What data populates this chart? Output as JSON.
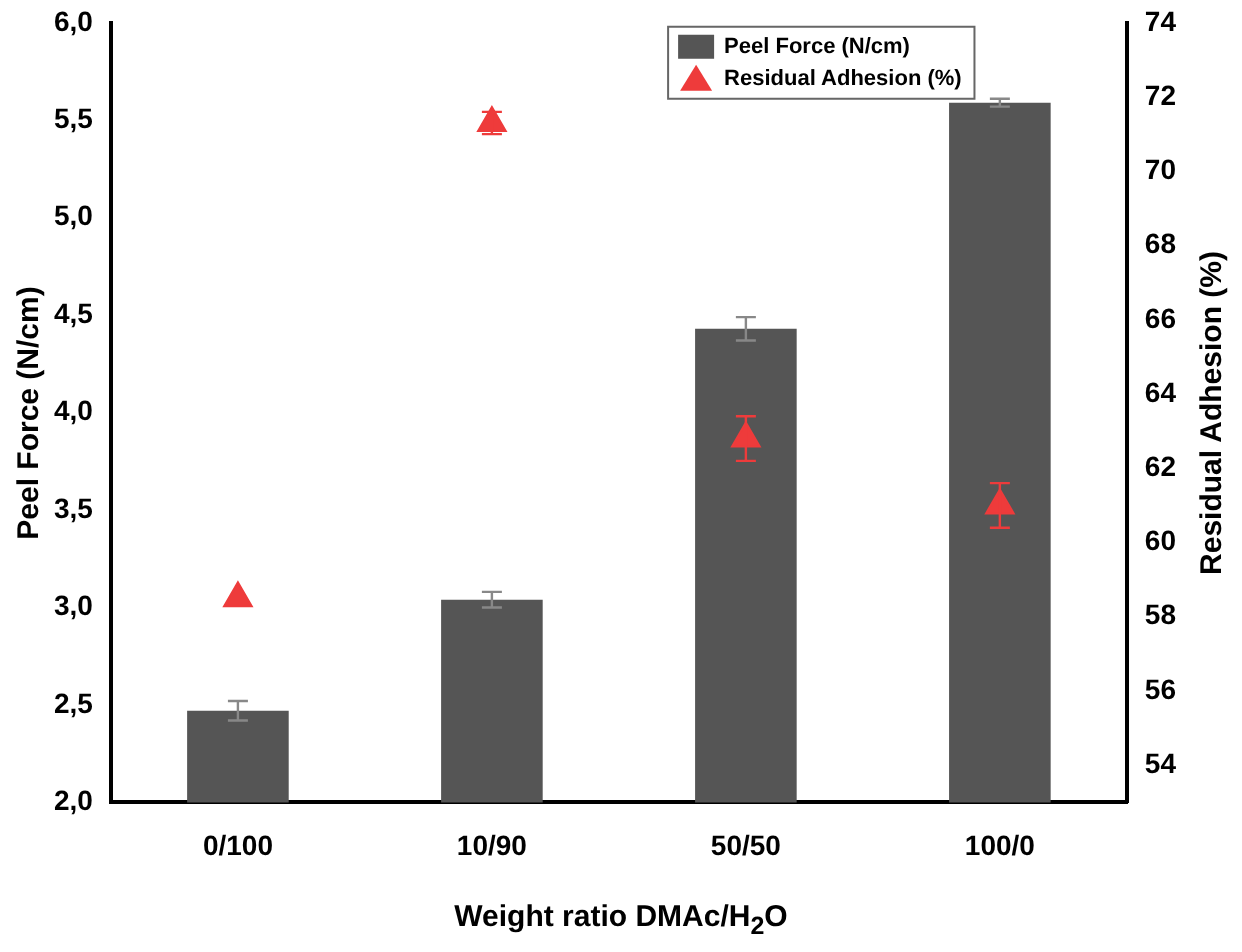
{
  "chart_data": {
    "type": "bar",
    "xlabel": "Weight ratio DMAc/H$_{2}$O",
    "ylabel": "Peel Force (N/cm)",
    "y2label": "Residual Adhesion (%)",
    "categories": [
      "0/100",
      "10/90",
      "50/50",
      "100/0"
    ],
    "series": [
      {
        "name": "Peel Force (N/cm)",
        "color": "#555555",
        "values": [
          2.47,
          3.04,
          4.43,
          5.59
        ],
        "errors": [
          0.05,
          0.04,
          0.06,
          0.02
        ]
      },
      {
        "name": "Residual Adhesion (%)",
        "type": "scatter",
        "axis": "y2",
        "color": "#ee3b3b",
        "x": [
          "0/100",
          "10/90",
          "50/50",
          "100/0"
        ],
        "values": [
          58.5,
          71.3,
          62.8,
          61.0
        ],
        "errors": [
          null,
          0.3,
          0.6,
          0.6
        ]
      }
    ],
    "ylim": [
      2,
      6
    ],
    "yticks": [
      {
        "value": 2,
        "label": "2,0"
      },
      {
        "value": 2.5,
        "label": "2,5"
      },
      {
        "value": 3,
        "label": "3,0"
      },
      {
        "value": 3.5,
        "label": "3,5"
      },
      {
        "value": 4,
        "label": "4,0"
      },
      {
        "value": 4.5,
        "label": "4,5"
      },
      {
        "value": 5,
        "label": "5,0"
      },
      {
        "value": 5.5,
        "label": "5,5"
      },
      {
        "value": 6,
        "label": "6,0"
      }
    ],
    "y2lim": [
      53,
      74
    ],
    "y2ticks": [
      54,
      56,
      58,
      60,
      62,
      64,
      66,
      68,
      70,
      72,
      74
    ],
    "marker": "triangle",
    "legend": "top right",
    "grid": false
  }
}
